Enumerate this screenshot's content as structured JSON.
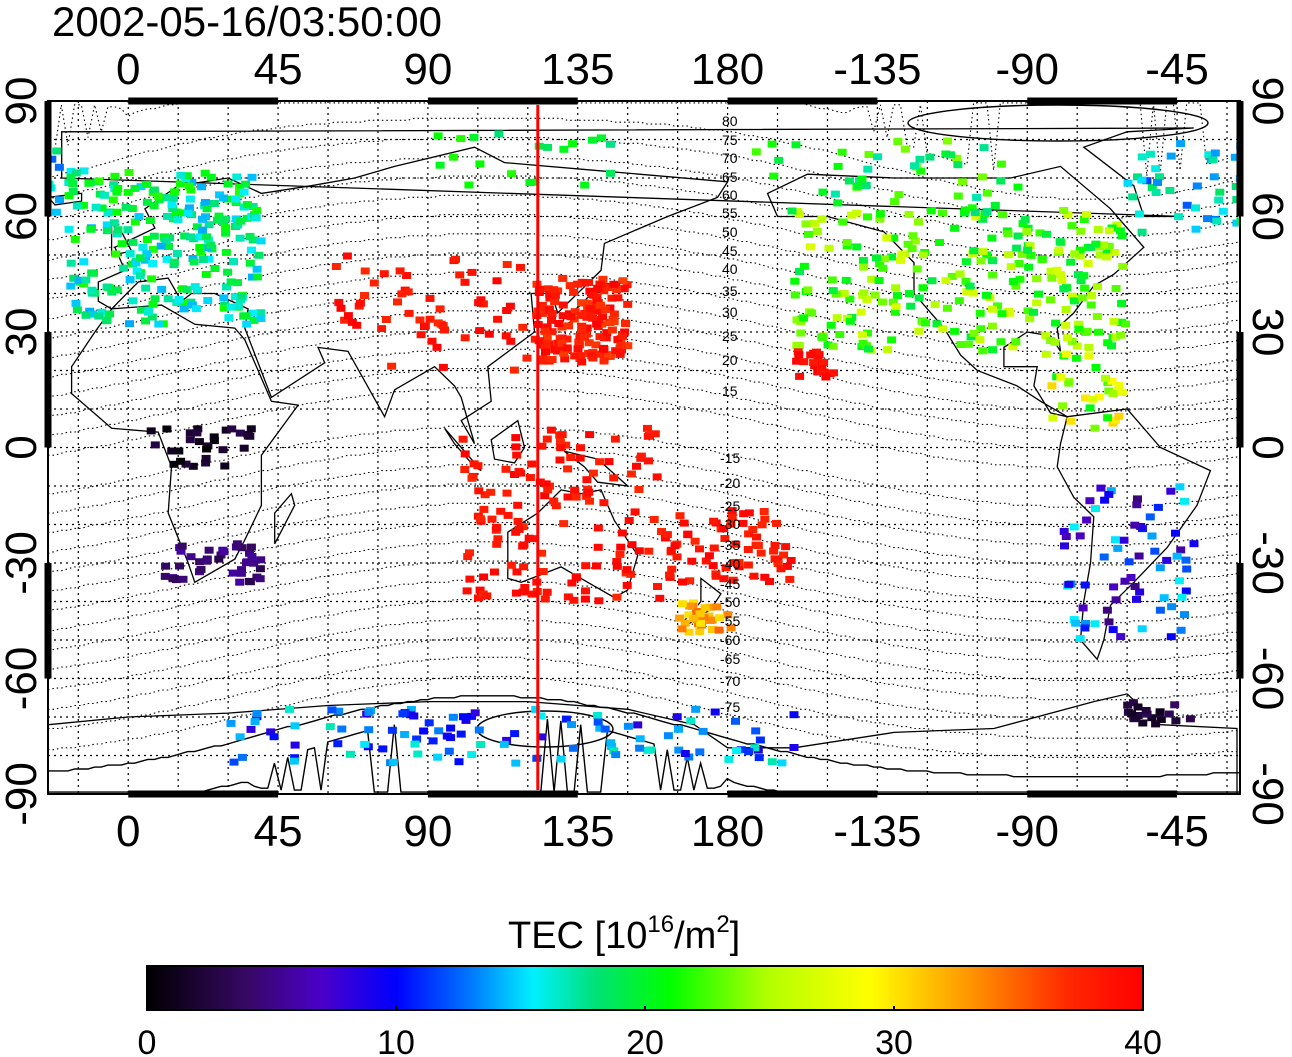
{
  "timestamp": "2002-05-16/03:50:00",
  "colorbar": {
    "label_prefix": "TEC  [10",
    "label_sup1": "16",
    "label_mid": "/m",
    "label_sup2": "2",
    "label_suffix": "]",
    "ticks": [
      "0",
      "10",
      "20",
      "30",
      "40"
    ],
    "range": [
      0,
      40
    ],
    "colors": [
      "#000000",
      "#3a0a6a",
      "#4b00c8",
      "#0000ff",
      "#0070ff",
      "#00f0ff",
      "#00e070",
      "#00ff00",
      "#b8ff00",
      "#ffff00",
      "#ff9a00",
      "#ff3000",
      "#ff0000"
    ]
  },
  "map": {
    "lon_ticks_top": [
      "0",
      "45",
      "90",
      "135",
      "180",
      "-135",
      "-90",
      "-45"
    ],
    "lon_ticks_bottom": [
      "0",
      "45",
      "90",
      "135",
      "180",
      "-135",
      "-90",
      "-45"
    ],
    "lat_ticks_left": [
      "90",
      "60",
      "30",
      "0",
      "-30",
      "-60",
      "-90"
    ],
    "lat_ticks_right": [
      "90",
      "60",
      "30",
      "0",
      "-30",
      "-60",
      "-90"
    ],
    "meridian_line_lon": 123,
    "meridian_line_color": "#ff0000",
    "contour_labels_north": [
      "80",
      "75",
      "70",
      "65",
      "60",
      "55",
      "50",
      "45",
      "40",
      "35",
      "30",
      "25",
      "20",
      "15"
    ],
    "contour_labels_south": [
      "-15",
      "-20",
      "-25",
      "-30",
      "-35",
      "-40",
      "-45",
      "-50",
      "-55",
      "-60",
      "-65",
      "-70",
      "-75"
    ]
  }
}
